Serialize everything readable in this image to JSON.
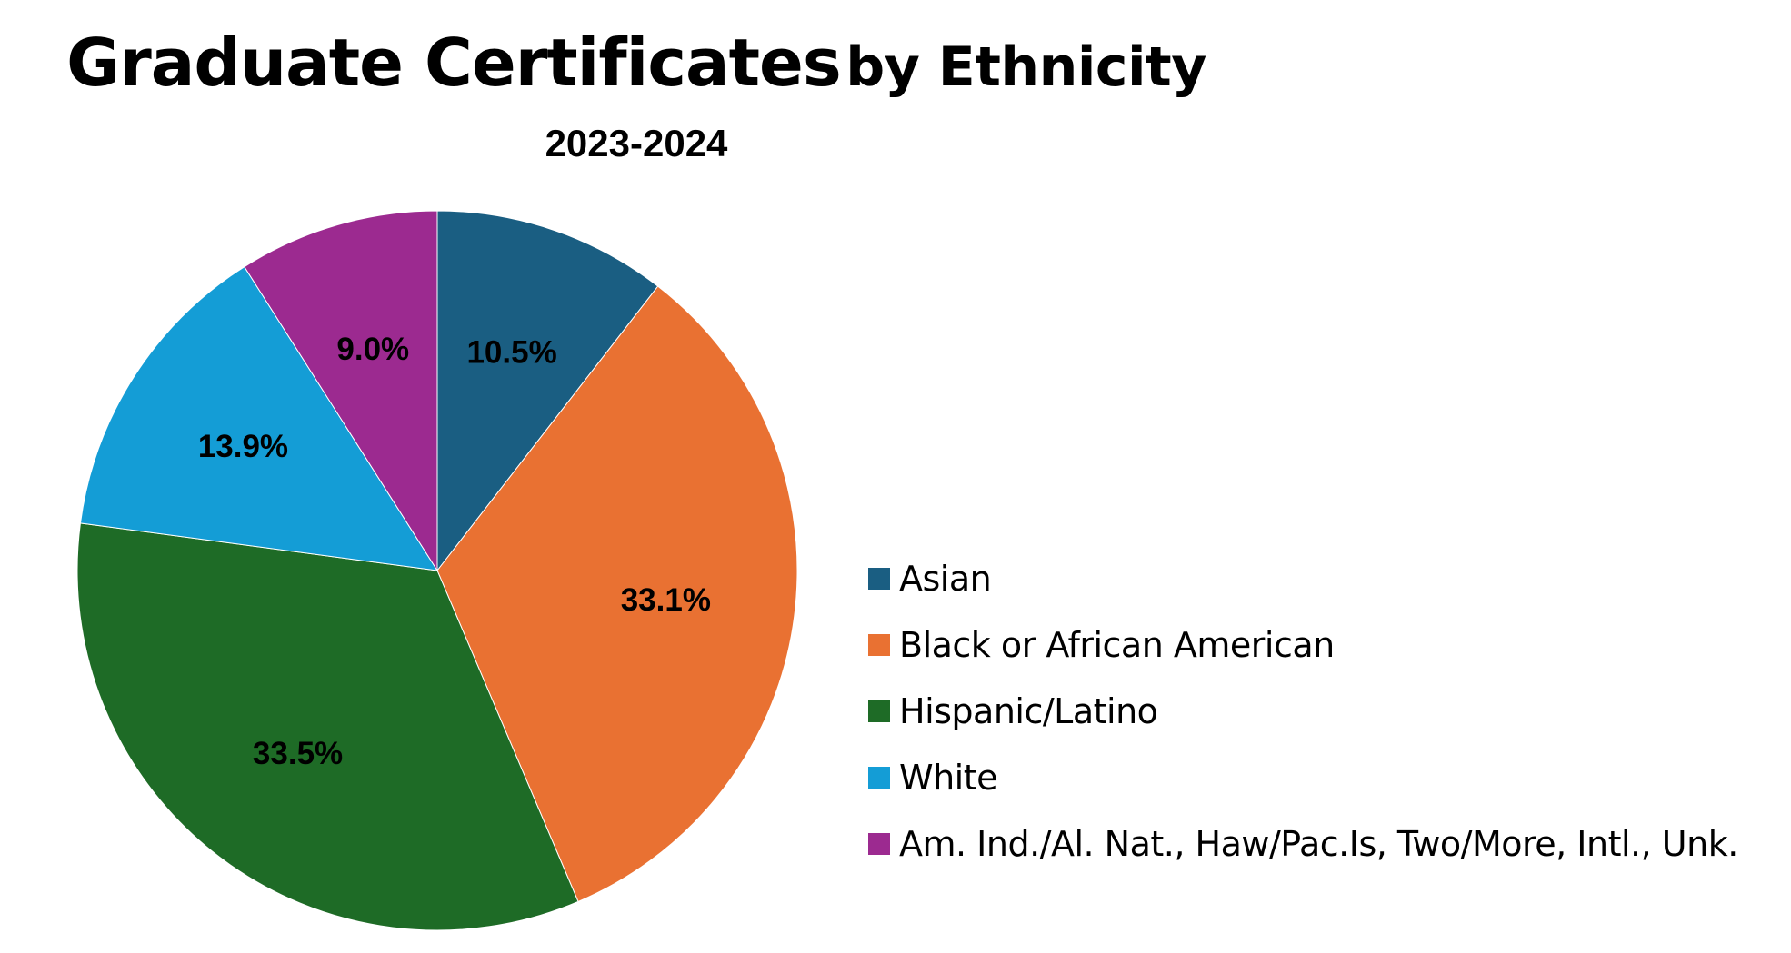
{
  "chart_data": {
    "type": "pie",
    "title": "Graduate Certificates",
    "title_tail": "by Ethnicity",
    "subtitle": "2023-2024",
    "start_angle_deg": 0,
    "direction": "clockwise",
    "legend_position": "right",
    "slices": [
      {
        "name": "Asian",
        "value": 10.5,
        "label": "10.5%",
        "color": "#1a5e82"
      },
      {
        "name": "Black or African American",
        "value": 33.1,
        "label": "33.1%",
        "color": "#e97132"
      },
      {
        "name": "Hispanic/Latino",
        "value": 33.5,
        "label": "33.5%",
        "color": "#1e6b26"
      },
      {
        "name": "White",
        "value": 13.9,
        "label": "13.9%",
        "color": "#149dd6"
      },
      {
        "name": "Am. Ind./Al. Nat., Haw/Pac.Is, Two/More, Intl., Unk.",
        "value": 9.0,
        "label": "9.0%",
        "color": "#9c2a90"
      }
    ]
  }
}
